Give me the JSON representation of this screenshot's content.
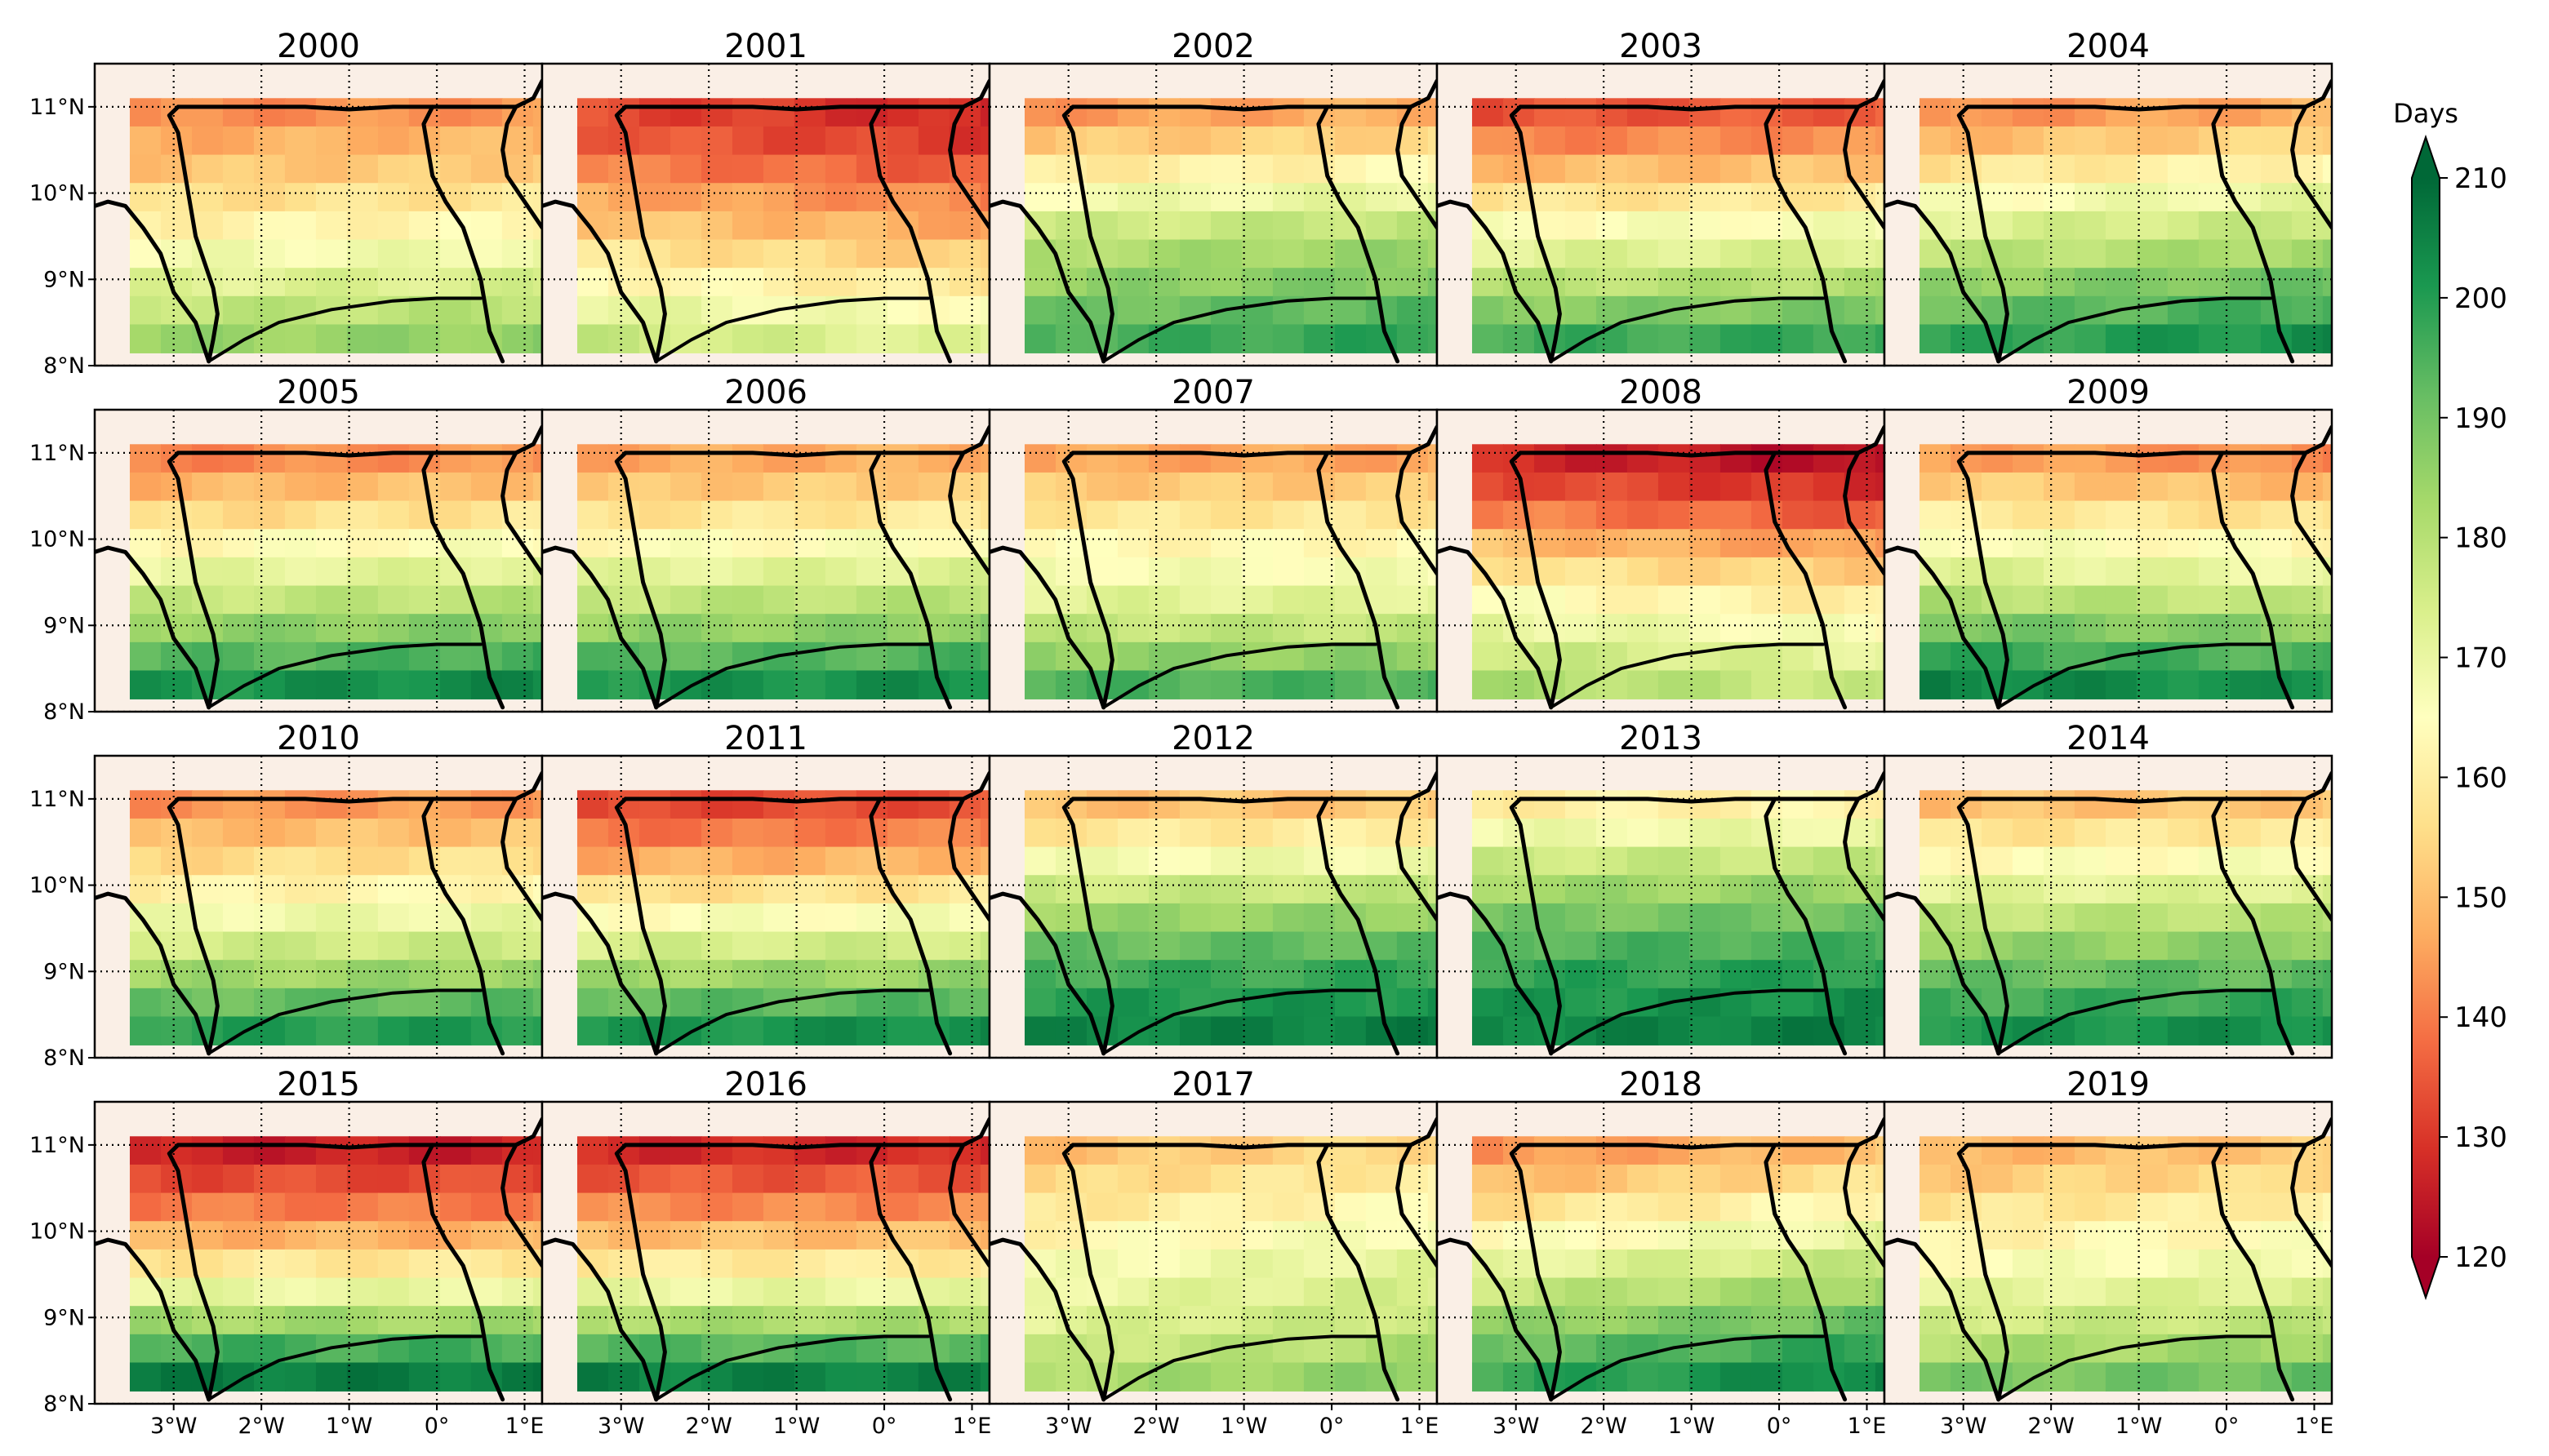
{
  "chart_data": {
    "type": "heatmap",
    "variable_label": "Days",
    "colorbar": {
      "label": "Days",
      "min": 120,
      "max": 210,
      "ticks": [
        120,
        130,
        140,
        150,
        160,
        170,
        180,
        190,
        200,
        210
      ],
      "tick_labels": [
        "120",
        "130",
        "140",
        "150",
        "160",
        "170",
        "180",
        "190",
        "200",
        "210"
      ],
      "extend": "both",
      "colormap": "RdYlGn",
      "stops": [
        "#a50026",
        "#d73027",
        "#f46d43",
        "#fdae61",
        "#fee08b",
        "#ffffbf",
        "#d9ef8b",
        "#a6d96a",
        "#66bd63",
        "#1a9850",
        "#006837"
      ]
    },
    "lat_range": [
      8,
      11.5
    ],
    "lon_range": [
      -3.9,
      1.2
    ],
    "data_lat_range": [
      8.15,
      11.1
    ],
    "data_lon_range": [
      -3.5,
      1.45
    ],
    "lat_ticks": [
      8,
      9,
      10,
      11
    ],
    "lat_tick_labels": [
      "8°N",
      "9°N",
      "10°N",
      "11°N"
    ],
    "lon_ticks": [
      -3,
      -2,
      -1,
      0,
      1
    ],
    "lon_tick_labels": [
      "3°W",
      "2°W",
      "1°W",
      "0°",
      "1°E"
    ],
    "background_color": "#faefe6",
    "panels": [
      {
        "year": "2000",
        "row_values": [
          142,
          147,
          151,
          156,
          161,
          167,
          172,
          178,
          184
        ],
        "east_shift": 2
      },
      {
        "year": "2001",
        "row_values": [
          133,
          136,
          141,
          147,
          152,
          158,
          164,
          171,
          177
        ],
        "east_shift": -6
      },
      {
        "year": "2002",
        "row_values": [
          144,
          151,
          159,
          167,
          175,
          181,
          185,
          190,
          195
        ],
        "east_shift": 4
      },
      {
        "year": "2003",
        "row_values": [
          134,
          141,
          149,
          157,
          165,
          172,
          179,
          187,
          196
        ],
        "east_shift": 2
      },
      {
        "year": "2004",
        "row_values": [
          142,
          149,
          157,
          165,
          172,
          178,
          185,
          191,
          197
        ],
        "east_shift": 6
      },
      {
        "year": "2005",
        "row_values": [
          141,
          148,
          155,
          163,
          170,
          177,
          185,
          193,
          201
        ],
        "east_shift": 3
      },
      {
        "year": "2006",
        "row_values": [
          146,
          151,
          157,
          164,
          171,
          178,
          185,
          193,
          201
        ],
        "east_shift": 2
      },
      {
        "year": "2007",
        "row_values": [
          146,
          152,
          158,
          163,
          167,
          172,
          178,
          186,
          195
        ],
        "east_shift": 0
      },
      {
        "year": "2008",
        "row_values": [
          128,
          134,
          141,
          150,
          158,
          165,
          171,
          177,
          182
        ],
        "east_shift": -6
      },
      {
        "year": "2009",
        "row_values": [
          146,
          153,
          160,
          167,
          173,
          181,
          190,
          198,
          205
        ],
        "east_shift": -4
      },
      {
        "year": "2010",
        "row_values": [
          143,
          149,
          155,
          161,
          168,
          175,
          183,
          191,
          199
        ],
        "east_shift": 2
      },
      {
        "year": "2011",
        "row_values": [
          132,
          139,
          147,
          156,
          165,
          174,
          183,
          192,
          201
        ],
        "east_shift": 2
      },
      {
        "year": "2012",
        "row_values": [
          150,
          158,
          167,
          176,
          184,
          191,
          196,
          200,
          204
        ],
        "east_shift": 2
      },
      {
        "year": "2013",
        "row_values": [
          160,
          168,
          176,
          183,
          189,
          194,
          198,
          201,
          204
        ],
        "east_shift": 2
      },
      {
        "year": "2014",
        "row_values": [
          150,
          157,
          164,
          171,
          178,
          185,
          191,
          196,
          201
        ],
        "east_shift": 2
      },
      {
        "year": "2015",
        "row_values": [
          126,
          133,
          140,
          148,
          158,
          170,
          183,
          196,
          206
        ],
        "east_shift": 0
      },
      {
        "year": "2016",
        "row_values": [
          128,
          135,
          142,
          150,
          159,
          170,
          182,
          194,
          205
        ],
        "east_shift": 0
      },
      {
        "year": "2017",
        "row_values": [
          150,
          154,
          158,
          162,
          166,
          169,
          172,
          176,
          181
        ],
        "east_shift": 6
      },
      {
        "year": "2018",
        "row_values": [
          143,
          149,
          156,
          163,
          170,
          177,
          184,
          191,
          197
        ],
        "east_shift": 8
      },
      {
        "year": "2019",
        "row_values": [
          148,
          152,
          157,
          161,
          165,
          170,
          175,
          181,
          188
        ],
        "east_shift": 4
      }
    ]
  }
}
